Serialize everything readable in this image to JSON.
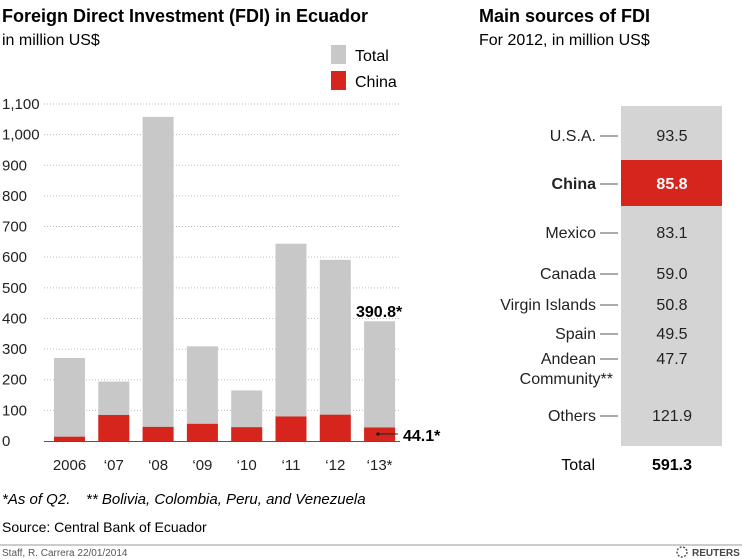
{
  "colors": {
    "total": "#c8c8c8",
    "china": "#d6251d",
    "text": "#222222",
    "muted": "#444444",
    "line": "#555555",
    "grid": "#bdbdbd"
  },
  "left": {
    "title": "Foreign Direct Investment (FDI) in Ecuador",
    "subtitle": "in million US$",
    "legend": {
      "total": "Total",
      "china": "China"
    },
    "last_total_label": "390.8*",
    "last_china_label": "44.1*"
  },
  "right": {
    "title": "Main sources of FDI",
    "subtitle": "For 2012, in million US$",
    "total_label": "Total",
    "total_value": "591.3"
  },
  "footnotes": {
    "as_of": "*As of Q2.",
    "andean": "** Bolivia, Colombia, Peru, and Venezuela",
    "source": "Source: Central Bank of Ecuador",
    "credit": "Staff, R. Carrera 22/01/2014",
    "brand": "REUTERS"
  },
  "chart_data": [
    {
      "type": "bar",
      "title": "Foreign Direct Investment (FDI) in Ecuador",
      "subtitle": "in million US$",
      "categories": [
        "2006",
        "‘07",
        "‘08",
        "‘09",
        "‘10",
        "‘11",
        "‘12",
        "‘13*"
      ],
      "ylim": [
        0,
        1100
      ],
      "yticks": [
        0,
        100,
        200,
        300,
        400,
        500,
        600,
        700,
        800,
        900,
        1000,
        1100
      ],
      "ytick_labels": [
        "0",
        "100",
        "200",
        "300",
        "400",
        "500",
        "600",
        "700",
        "800",
        "900",
        "1,000",
        "1,100"
      ],
      "grid": true,
      "legend": "top-right",
      "series": [
        {
          "name": "Total",
          "values": [
            271,
            194,
            1058,
            309,
            165,
            644,
            591.3,
            390.8
          ]
        },
        {
          "name": "China",
          "values": [
            14,
            85,
            46,
            56,
            45,
            80,
            85.8,
            44.1
          ]
        }
      ]
    },
    {
      "type": "table",
      "title": "Main sources of FDI",
      "subtitle": "For 2012, in million US$",
      "categories": [
        "U.S.A.",
        "China",
        "Mexico",
        "Canada",
        "Virgin Islands",
        "Spain",
        "Andean Community**",
        "Others"
      ],
      "values": [
        93.5,
        85.8,
        83.1,
        59.0,
        50.8,
        49.5,
        47.7,
        121.9
      ],
      "value_labels": [
        "93.5",
        "85.8",
        "83.1",
        "59.0",
        "50.8",
        "49.5",
        "47.7",
        "121.9"
      ],
      "highlight": "China",
      "total": 591.3
    }
  ]
}
